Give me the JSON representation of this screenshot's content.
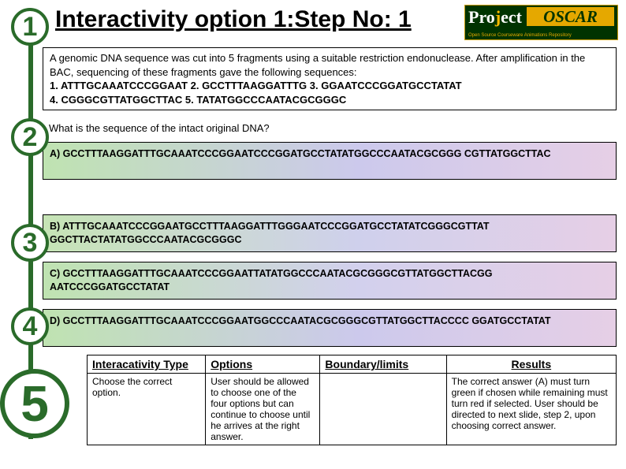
{
  "title": "Interactivity option 1:Step No: 1",
  "logo": {
    "left": "Pro",
    "j": "j",
    "ect": "ect",
    "oscar": "OSCAR",
    "sub": "Open Source Courseware Animations Repository"
  },
  "steps": [
    "1",
    "2",
    "3",
    "4",
    "5"
  ],
  "intro": "A genomic DNA sequence was cut into 5 fragments using a suitable restriction endonuclease. After amplification in the BAC, sequencing of these fragments gave the following sequences:",
  "seqs": "1. ATTTGCAAATCCCGGAAT   2. GCCTTTAAGGATTTG  3. GGAATCCCGGATGCCTATAT",
  "seqs2": "4. CGGGCGTTATGGCTTAC 5. TATATGGCCCAATACGCGGGC",
  "question": "What is the sequence of the intact original DNA?",
  "optA": "A) GCCTTTAAGGATTTGCAAATCCCGGAATCCCGGATGCCTATATGGCCCAATACGCGGG CGTTATGGCTTAC",
  "optB": "B) ATTTGCAAATCCCGGAATGCCTTTAAGGATTTGGGAATCCCGGATGCCTATATCGGGCGTTAT GGCTTACTATATGGCCCAATACGCGGGC",
  "optC": "C) GCCTTTAAGGATTTGCAAATCCCGGAATTATATGGCCCAATACGCGGGCGTTATGGCTTACGG AATCCCGGATGCCTATAT",
  "optD": "D) GCCTTTAAGGATTTGCAAATCCCGGAATGGCCCAATACGCGGGCGTTATGGCTTACCCC GGATGCCTATAT",
  "table": {
    "h1": "Interacativity Type",
    "h2": "Options",
    "h3": "Boundary/limits",
    "h4": "Results",
    "c1": "Choose the correct option.",
    "c2": "User should be allowed to choose one of the four options but can continue to choose until he arrives at the right answer.",
    "c3": "",
    "c4": "The correct answer (A) must turn green if chosen while remaining must turn red if selected. User should be directed to next slide, step 2, upon choosing correct answer."
  }
}
